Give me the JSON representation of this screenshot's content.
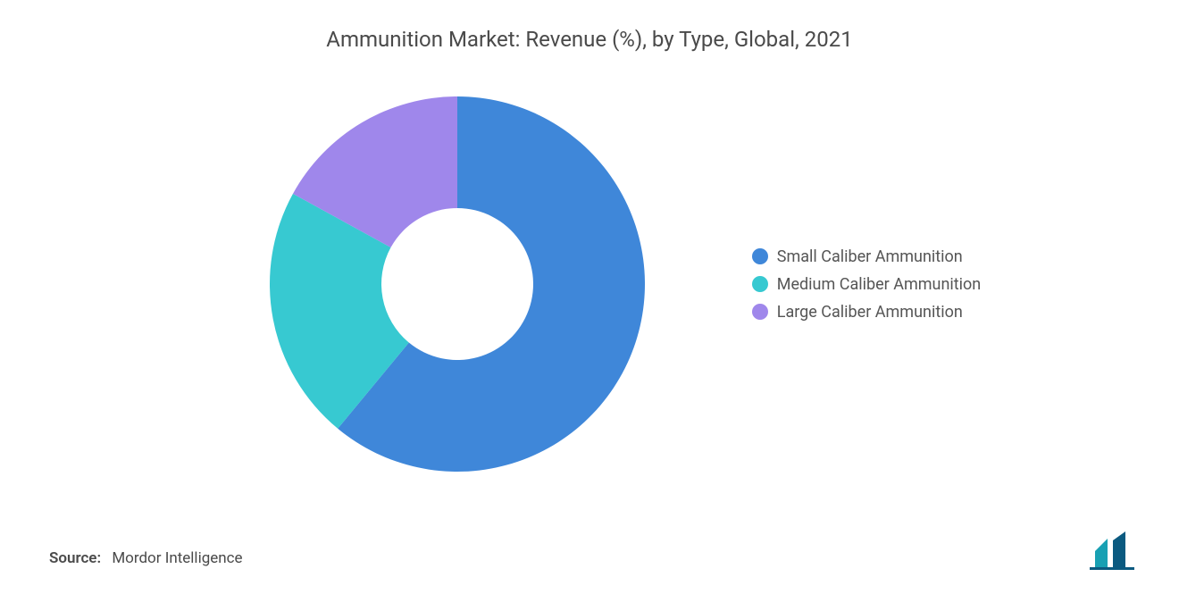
{
  "title": "Ammunition Market: Revenue (%), by Type, Global, 2021",
  "chart": {
    "type": "donut",
    "outer_radius": 210,
    "inner_radius": 85,
    "background_color": "#ffffff",
    "start_angle_deg": -90,
    "series": [
      {
        "label": "Small Caliber Ammunition",
        "value": 61,
        "color": "#3f87d9"
      },
      {
        "label": "Medium Caliber Ammunition",
        "value": 22,
        "color": "#37c9d1"
      },
      {
        "label": "Large Caliber Ammunition",
        "value": 17,
        "color": "#9f87eb"
      }
    ]
  },
  "legend": {
    "items": [
      {
        "label": "Small Caliber Ammunition",
        "color": "#3f87d9"
      },
      {
        "label": "Medium Caliber Ammunition",
        "color": "#37c9d1"
      },
      {
        "label": "Large Caliber Ammunition",
        "color": "#9f87eb"
      }
    ],
    "font_size": 18,
    "text_color": "#555555"
  },
  "source": {
    "label": "Source:",
    "value": "Mordor Intelligence"
  },
  "logo": {
    "bar1_color": "#18a0b3",
    "bar2_color": "#0b5a80"
  }
}
